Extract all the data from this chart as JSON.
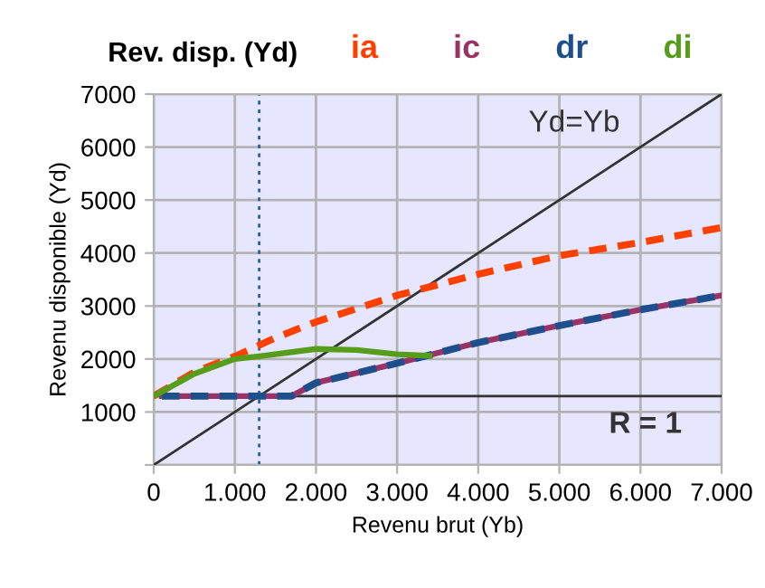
{
  "chart_data": {
    "type": "line",
    "title": "Rev. disp. (Yd)",
    "xlabel": "Revenu brut (Yb)",
    "ylabel": "Revenu disponible (Yd)",
    "xlim": [
      0,
      7000
    ],
    "ylim": [
      0,
      7000
    ],
    "xticks": [
      0,
      {
        "value": 1000,
        "label": "1.000"
      },
      {
        "value": 2000,
        "label": "2.000"
      },
      {
        "value": 3000,
        "label": "3.000"
      },
      {
        "value": 4000,
        "label": "4.000"
      },
      {
        "value": 5000,
        "label": "5.000"
      },
      {
        "value": 6000,
        "label": "6.000"
      },
      {
        "value": 7000,
        "label": "7.000"
      }
    ],
    "yticks": [
      {
        "value": 0,
        "label": null
      },
      1000,
      2000,
      3000,
      4000,
      5000,
      6000,
      7000
    ],
    "grid": true,
    "legend": "top right",
    "marker": "none",
    "series": [
      {
        "color": "#333333",
        "line_style": "solid",
        "x": [
          0,
          7000
        ],
        "values": [
          0,
          7000
        ]
      },
      {
        "color": "#333333",
        "line_style": "solid",
        "x": [
          100,
          7000
        ],
        "values": [
          1300,
          1300
        ]
      },
      {
        "name": "ia",
        "color": "#ff4000",
        "line_style": "dashed",
        "x": [
          0,
          500,
          1000,
          1500,
          2000,
          3000,
          4000,
          5000,
          6000,
          7000
        ],
        "values": [
          1300,
          1750,
          2050,
          2400,
          2700,
          3200,
          3600,
          3950,
          4200,
          4480
        ]
      },
      {
        "name": "ic",
        "color": "#993366",
        "line_style": "solid",
        "x": [
          100,
          1700,
          2000,
          3000,
          4000,
          5000,
          6000,
          7000
        ],
        "values": [
          1300,
          1300,
          1550,
          1920,
          2310,
          2630,
          2930,
          3200
        ]
      },
      {
        "name": "dr",
        "color": "#1c4f8c",
        "line_style": "dashed",
        "x": [
          100,
          1700,
          2000,
          3000,
          4000,
          5000,
          6000,
          7000
        ],
        "values": [
          1300,
          1300,
          1550,
          1920,
          2310,
          2630,
          2930,
          3200
        ]
      },
      {
        "name": "di",
        "color": "#579d1c",
        "line_style": "solid",
        "x": [
          0,
          500,
          1000,
          1300,
          2000,
          2500,
          3000,
          3400
        ],
        "values": [
          1300,
          1720,
          2000,
          2050,
          2190,
          2170,
          2090,
          2060
        ]
      }
    ],
    "ref_lines": [
      {
        "axis": "x",
        "value": 1300,
        "color": "#2a6099",
        "line_style": "dotted"
      }
    ],
    "annotations": [
      "Yd=Yb",
      "R = 1"
    ]
  }
}
